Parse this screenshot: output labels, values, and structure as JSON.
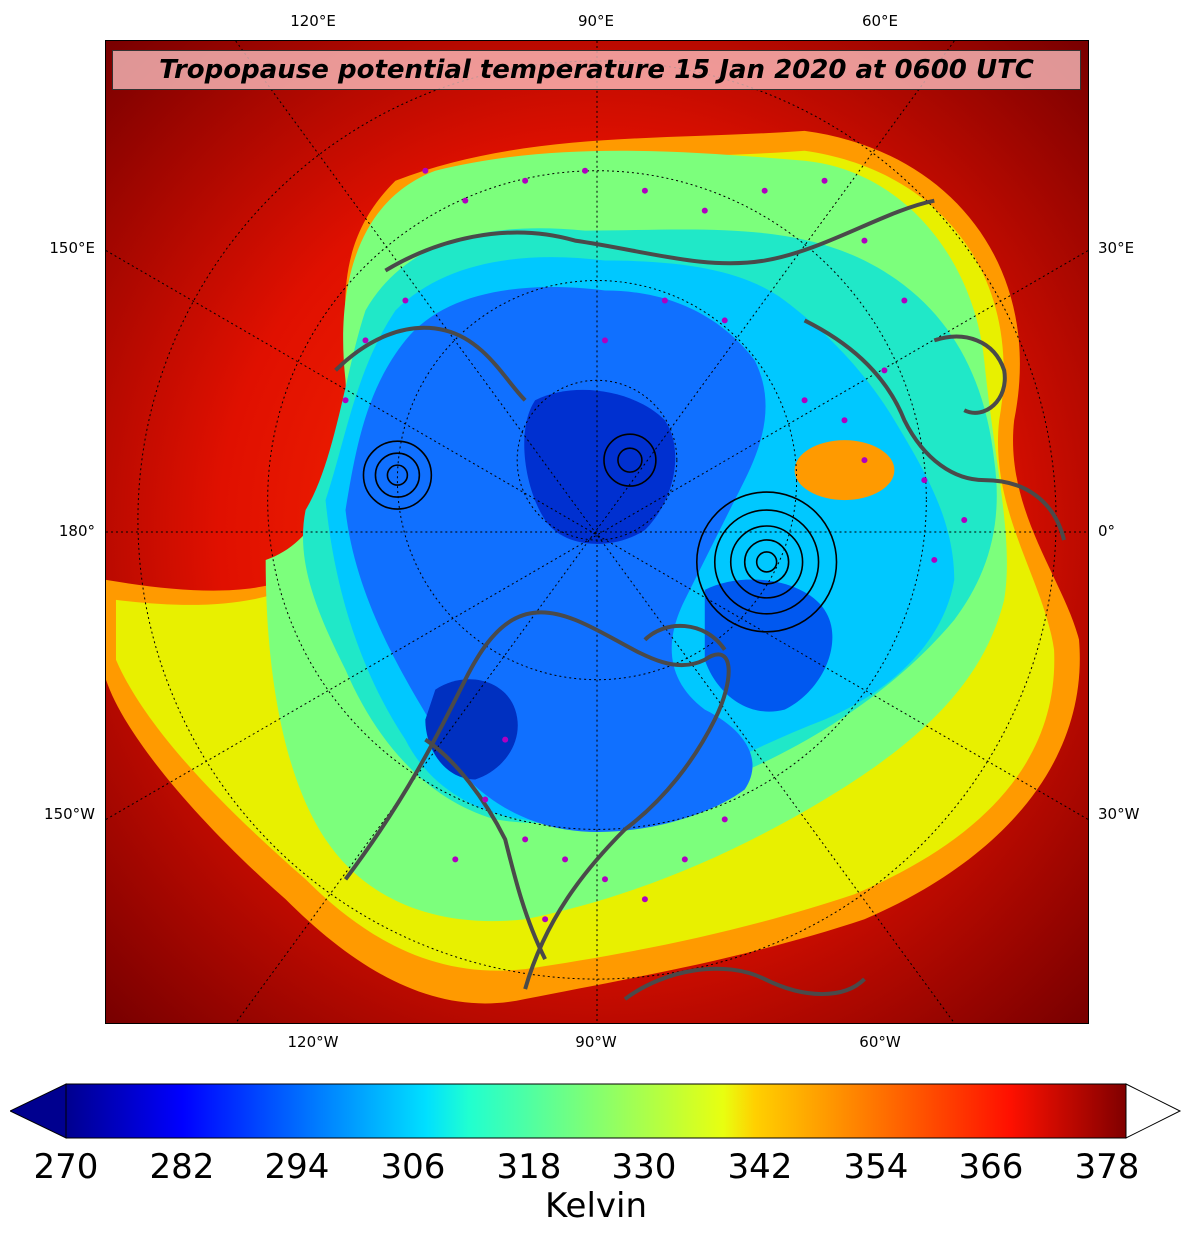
{
  "title": "Tropopause potential temperature 15 Jan 2020 at 0600 UTC",
  "colors": {
    "outer": "#8b0000",
    "warm": "#ff2000",
    "orange": "#ff9900",
    "yellow": "#eaff00",
    "green": "#80ff80",
    "teal": "#20e8c8",
    "cyan": "#00c8ff",
    "blue": "#0070ff",
    "deep_blue": "#0020c0",
    "coast": "#4a4a4a",
    "station": "#b000c0"
  },
  "axis_labels": {
    "top": [
      "120°E",
      "90°E",
      "60°E"
    ],
    "bottom": [
      "120°W",
      "90°W",
      "60°W"
    ],
    "left": [
      "150°E",
      "180°",
      "150°W"
    ],
    "right": [
      "30°E",
      "0°",
      "30°W"
    ]
  },
  "colorbar": {
    "ticks": [
      "270",
      "282",
      "294",
      "306",
      "318",
      "330",
      "342",
      "354",
      "366",
      "378"
    ],
    "min": 270,
    "max": 378,
    "extend": "both",
    "label": "Kelvin",
    "colormap": "jet"
  }
}
